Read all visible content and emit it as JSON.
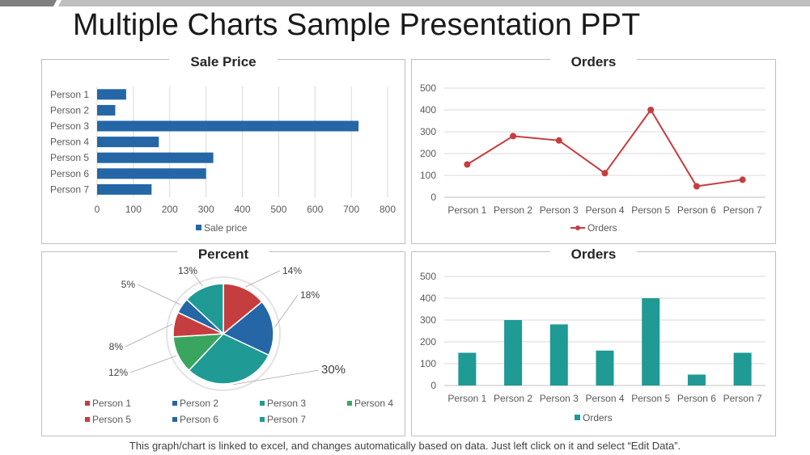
{
  "title": "Multiple Charts Sample Presentation PPT",
  "footer": "This graph/chart is linked to excel, and changes automatically based on data. Just left click on it and select “Edit Data”.",
  "colors": {
    "blue": "#2466a6",
    "red": "#c63d3f",
    "teal": "#1f9a94",
    "green": "#3aa55f",
    "grid": "#d9d9d9",
    "axis": "#bfbfbf"
  },
  "chart_data": [
    {
      "type": "bar",
      "orientation": "horizontal",
      "title": "Sale Price",
      "categories": [
        "Person 1",
        "Person 2",
        "Person 3",
        "Person 4",
        "Person 5",
        "Person 6",
        "Person 7"
      ],
      "series": [
        {
          "name": "Sale price",
          "values": [
            80,
            50,
            720,
            170,
            320,
            300,
            150
          ]
        }
      ],
      "xlim": [
        0,
        800
      ],
      "xticks": [
        0,
        100,
        200,
        300,
        400,
        500,
        600,
        700,
        800
      ],
      "legend": "bottom",
      "grid": true
    },
    {
      "type": "line",
      "title": "Orders",
      "categories": [
        "Person 1",
        "Person 2",
        "Person 3",
        "Person 4",
        "Person 5",
        "Person 6",
        "Person 7"
      ],
      "series": [
        {
          "name": "Orders",
          "values": [
            150,
            280,
            260,
            110,
            400,
            50,
            80
          ]
        }
      ],
      "ylim": [
        0,
        500
      ],
      "yticks": [
        0,
        100,
        200,
        300,
        400,
        500
      ],
      "legend": "bottom",
      "grid": true
    },
    {
      "type": "pie",
      "title": "Percent",
      "labels": [
        "Person 1",
        "Person 2",
        "Person 3",
        "Person 4",
        "Person 5",
        "Person 6",
        "Person 7"
      ],
      "values": [
        14,
        18,
        30,
        12,
        8,
        5,
        13
      ],
      "display_labels": [
        "14%",
        "18%",
        "30%",
        "12%",
        "8%",
        "5%",
        "13%"
      ],
      "colors": [
        "#c63d3f",
        "#2466a6",
        "#1f9a94",
        "#3aa55f",
        "#c63d3f",
        "#2466a6",
        "#1f9a94"
      ],
      "legend": "bottom"
    },
    {
      "type": "bar",
      "title": "Orders",
      "categories": [
        "Person 1",
        "Person 2",
        "Person 3",
        "Person 4",
        "Person 5",
        "Person 6",
        "Person 7"
      ],
      "series": [
        {
          "name": "Orders",
          "values": [
            150,
            300,
            280,
            160,
            400,
            50,
            150
          ]
        }
      ],
      "ylim": [
        0,
        500
      ],
      "yticks": [
        0,
        100,
        200,
        300,
        400,
        500
      ],
      "legend": "bottom",
      "grid": true
    }
  ]
}
